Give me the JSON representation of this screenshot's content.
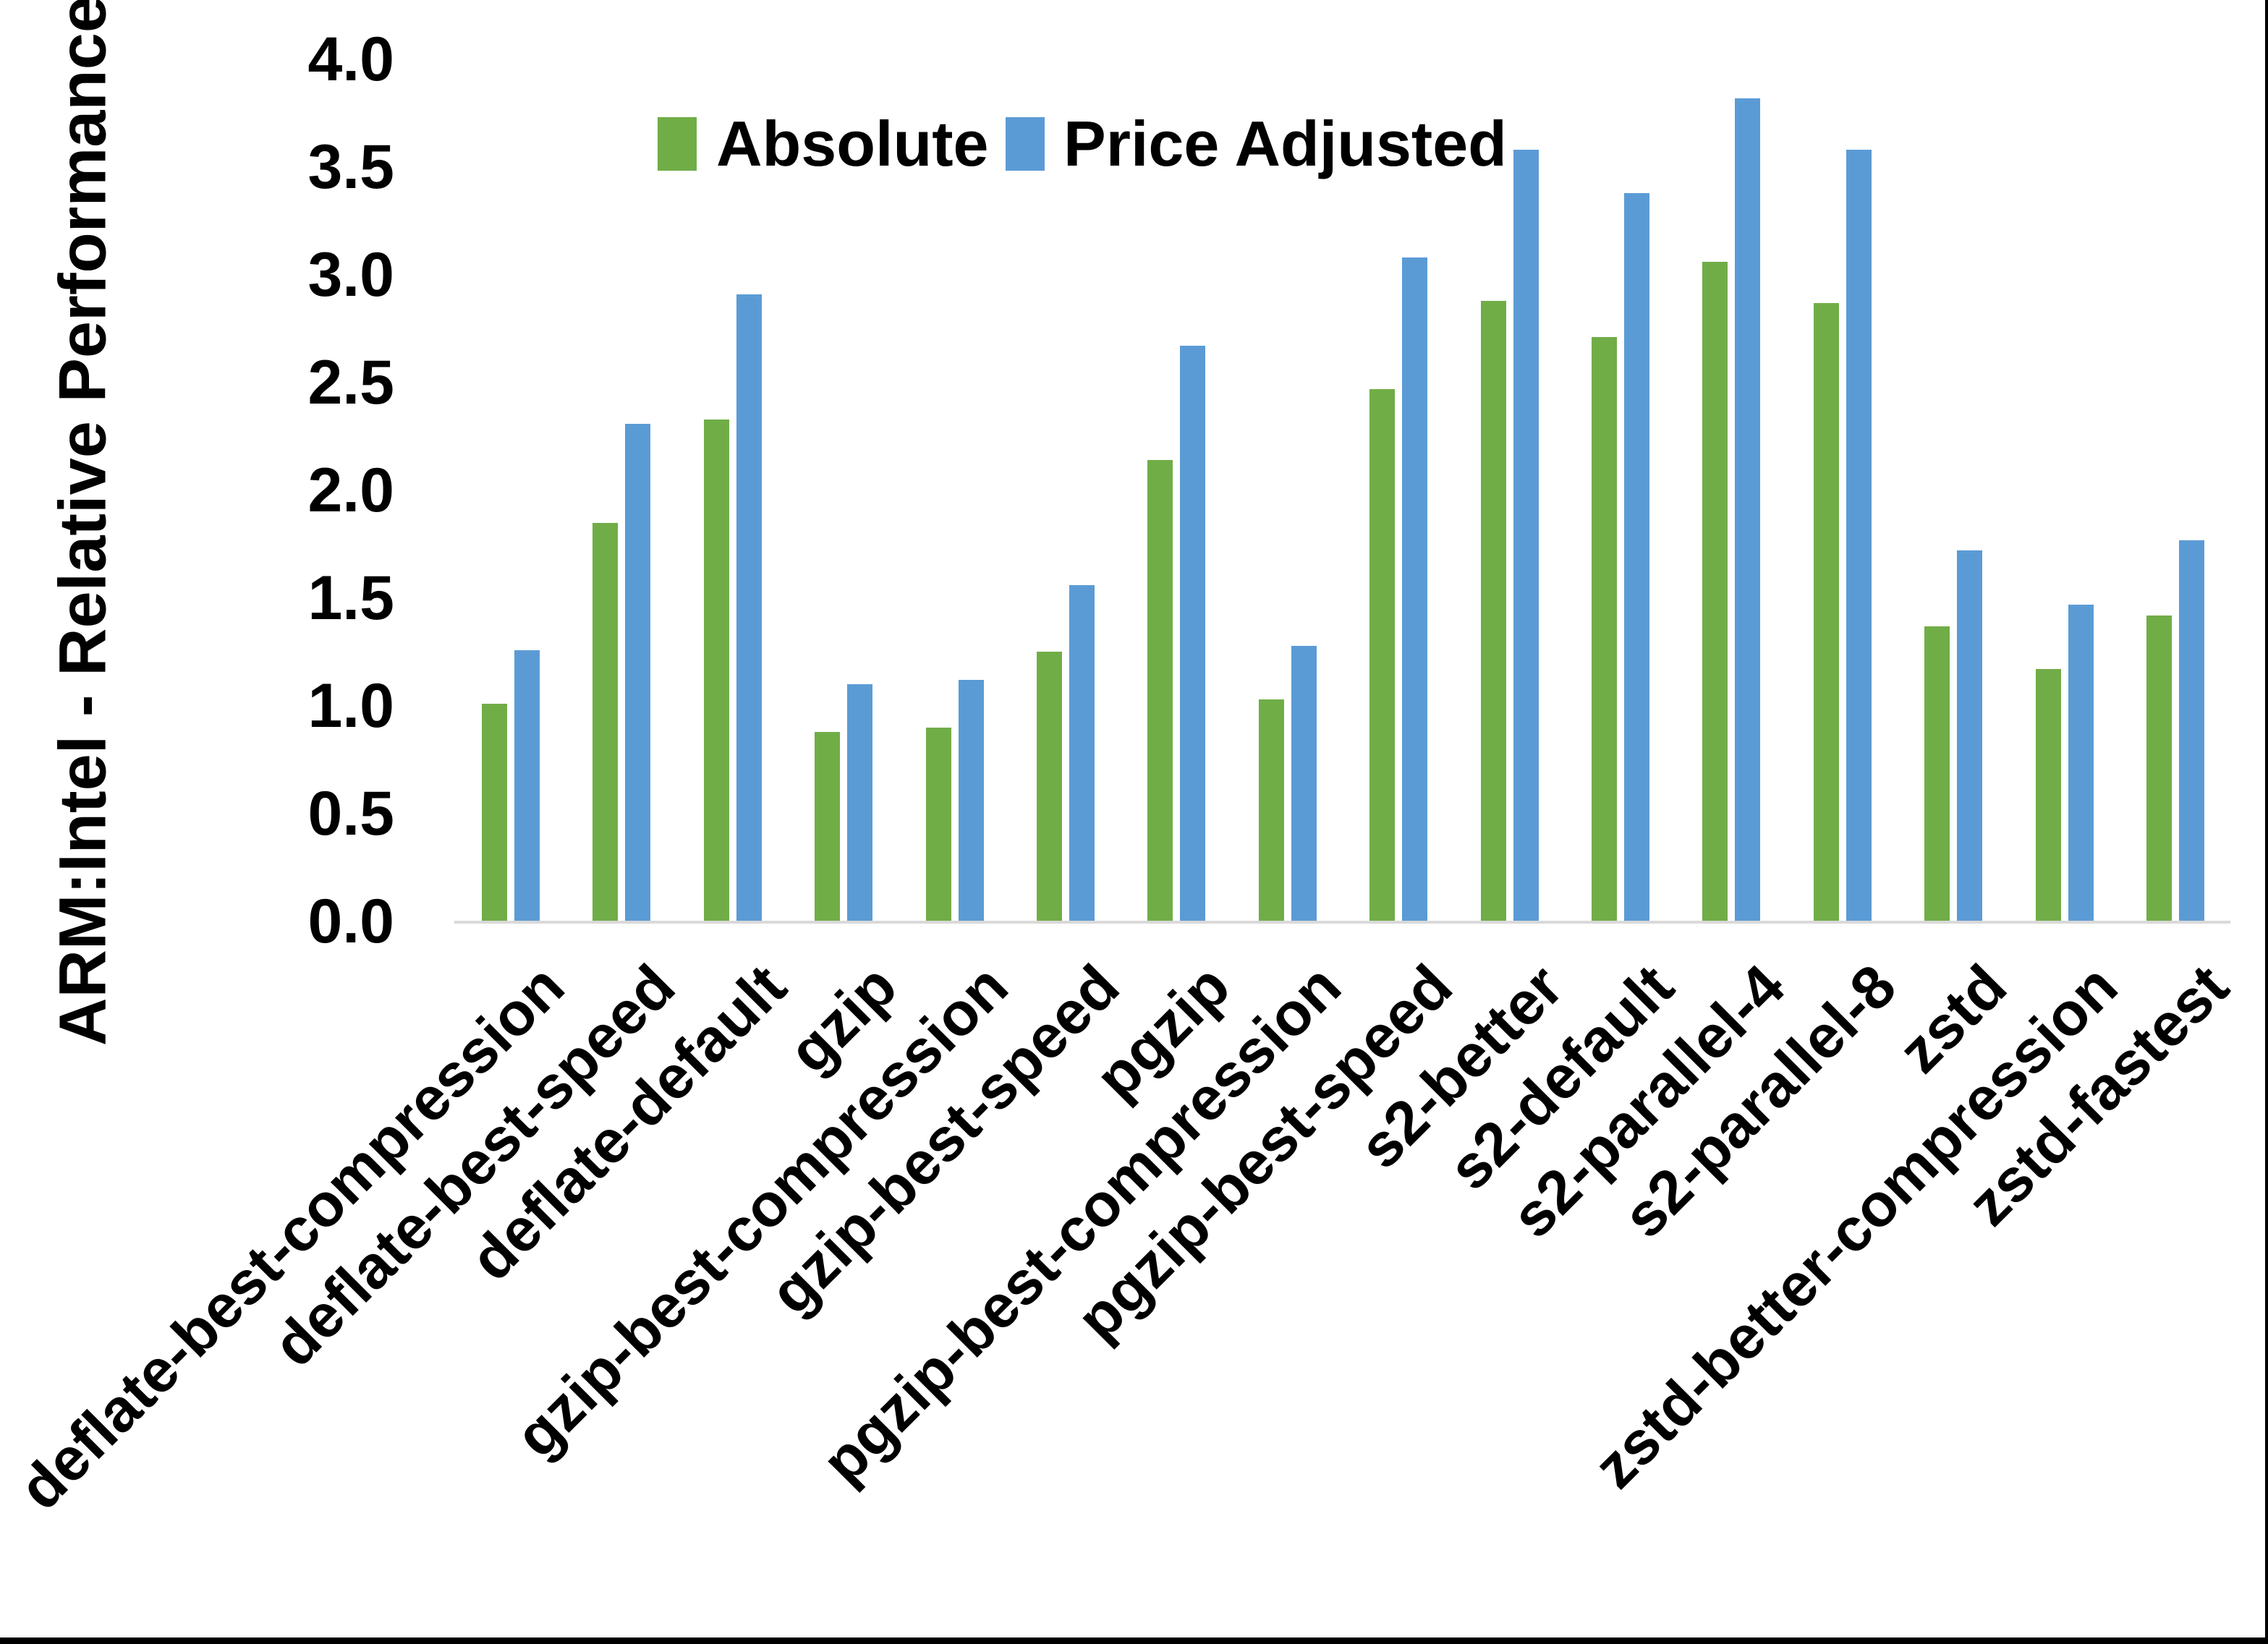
{
  "chart_data": {
    "type": "bar",
    "title": "",
    "xlabel": "",
    "ylabel": "ARM:Intel - Relative Performance",
    "ylim": [
      0.0,
      4.0
    ],
    "ytick_step": 0.5,
    "ytick_labels": [
      "0.0",
      "0.5",
      "1.0",
      "1.5",
      "2.0",
      "2.5",
      "3.0",
      "3.5",
      "4.0"
    ],
    "grid": false,
    "legend_position": "top-center",
    "background_color": "#ffffff",
    "axis_line_color": "#d9d9d9",
    "frame_border_color": "#000000",
    "categories": [
      "deflate-best-compression",
      "deflate-best-speed",
      "deflate-default",
      "gzip",
      "gzip-best-compression",
      "gzip-best-speed",
      "pgzip",
      "pgzip-best-compression",
      "pgzip-best-speed",
      "s2-better",
      "s2-default",
      "s2-parallel-4",
      "s2-parallel-8",
      "zstd",
      "zstd-better-compression",
      "zstd-fastest"
    ],
    "series": [
      {
        "name": "Absolute",
        "color": "#70AD47",
        "values": [
          1.01,
          1.85,
          2.33,
          0.88,
          0.9,
          1.25,
          2.14,
          1.03,
          2.47,
          2.88,
          2.71,
          3.06,
          2.87,
          1.37,
          1.17,
          1.42
        ]
      },
      {
        "name": "Price Adjusted",
        "color": "#5B9BD5",
        "values": [
          1.26,
          2.31,
          2.91,
          1.1,
          1.12,
          1.56,
          2.67,
          1.28,
          3.08,
          3.58,
          3.38,
          3.82,
          3.58,
          1.72,
          1.47,
          1.77
        ]
      }
    ]
  }
}
